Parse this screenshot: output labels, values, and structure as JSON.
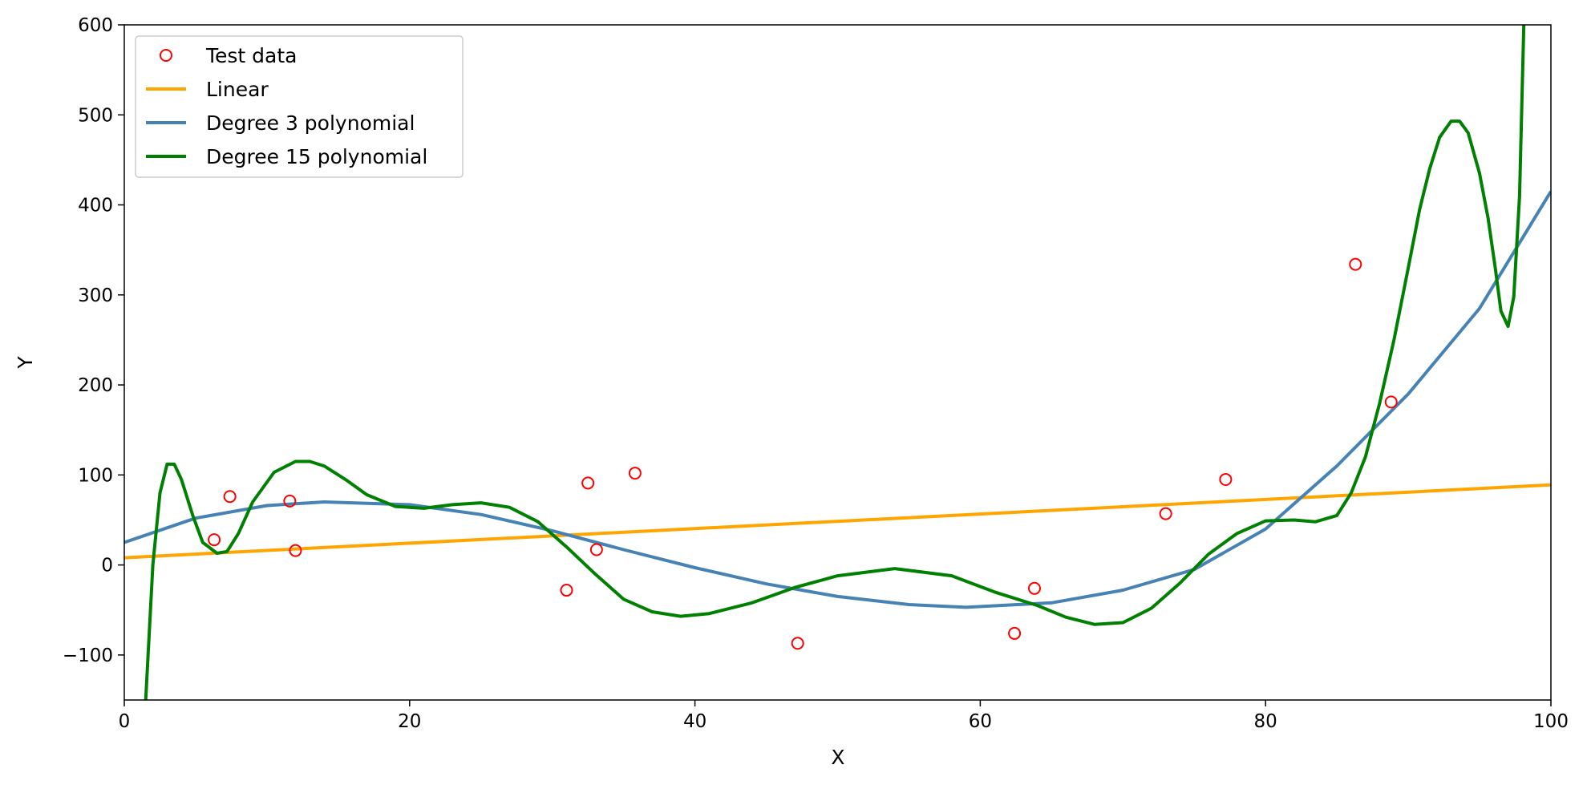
{
  "chart_data": {
    "type": "line",
    "title": "",
    "xlabel": "X",
    "ylabel": "Y",
    "xlim": [
      0,
      100
    ],
    "ylim": [
      -150,
      600
    ],
    "xticks": [
      0,
      20,
      40,
      60,
      80,
      100
    ],
    "yticks": [
      -100,
      0,
      100,
      200,
      300,
      400,
      500,
      600
    ],
    "xtick_labels": [
      "0",
      "20",
      "40",
      "60",
      "80",
      "100"
    ],
    "ytick_labels": [
      "−100",
      "0",
      "100",
      "200",
      "300",
      "400",
      "500",
      "600"
    ],
    "grid": false,
    "legend_position": "top-left",
    "legend": [
      {
        "label": "Test data",
        "kind": "marker",
        "color": "#ff0000"
      },
      {
        "label": "Linear",
        "kind": "line",
        "color": "#ffa500"
      },
      {
        "label": "Degree 3 polynomial",
        "kind": "line",
        "color": "#4682b4"
      },
      {
        "label": "Degree 15 polynomial",
        "kind": "line",
        "color": "#008000"
      }
    ],
    "scatter": {
      "name": "Test data",
      "color": "#ff0000",
      "points": [
        [
          6.3,
          28
        ],
        [
          7.4,
          76
        ],
        [
          11.6,
          71
        ],
        [
          12.0,
          16
        ],
        [
          31.0,
          -28
        ],
        [
          32.5,
          91
        ],
        [
          33.1,
          17
        ],
        [
          35.8,
          102
        ],
        [
          47.2,
          -87
        ],
        [
          62.4,
          -76
        ],
        [
          63.8,
          -26
        ],
        [
          73.0,
          57
        ],
        [
          77.2,
          95
        ],
        [
          86.3,
          334
        ],
        [
          88.8,
          181
        ]
      ]
    },
    "series": [
      {
        "name": "Linear",
        "color": "#ffa500",
        "x": [
          0,
          100
        ],
        "y": [
          8,
          89
        ]
      },
      {
        "name": "Degree 3 polynomial",
        "color": "#4682b4",
        "x": [
          0,
          5,
          10,
          14,
          20,
          25,
          30,
          35,
          40,
          45,
          50,
          55,
          59,
          65,
          70,
          75,
          80,
          85,
          90,
          95,
          100
        ],
        "y": [
          25,
          52,
          66,
          70,
          67,
          56,
          38,
          17,
          -3,
          -21,
          -35,
          -44,
          -47,
          -42,
          -28,
          -5,
          40,
          110,
          190,
          285,
          415
        ]
      },
      {
        "name": "Degree 15 polynomial",
        "color": "#008000",
        "x": [
          1.5,
          2.0,
          2.5,
          3.0,
          3.5,
          4.0,
          4.8,
          5.5,
          6.5,
          7.2,
          8.0,
          9.0,
          10.5,
          12.0,
          13.0,
          14.0,
          15.5,
          17.0,
          19.0,
          21.0,
          23.0,
          25.0,
          27.0,
          29.0,
          31.0,
          33.0,
          35.0,
          37.0,
          39.0,
          41.0,
          44.0,
          47.0,
          50.0,
          54.0,
          58.0,
          61.0,
          64.0,
          66.0,
          68.0,
          70.0,
          72.0,
          74.0,
          76.0,
          78.0,
          80.0,
          82.0,
          83.5,
          85.0,
          86.0,
          87.0,
          88.0,
          89.0,
          90.0,
          90.8,
          91.5,
          92.2,
          93.0,
          93.6,
          94.2,
          95.0,
          95.6,
          96.1,
          96.5,
          97.0,
          97.4,
          97.8,
          98.1
        ],
        "y": [
          -150,
          0,
          80,
          112,
          112,
          95,
          55,
          25,
          13,
          15,
          35,
          70,
          103,
          115,
          115,
          110,
          95,
          78,
          65,
          63,
          67,
          69,
          64,
          48,
          20,
          -10,
          -38,
          -52,
          -57,
          -54,
          -42,
          -25,
          -12,
          -4,
          -12,
          -30,
          -45,
          -58,
          -66,
          -64,
          -48,
          -20,
          12,
          35,
          49,
          50,
          48,
          55,
          80,
          120,
          180,
          250,
          330,
          395,
          440,
          475,
          493,
          493,
          480,
          435,
          385,
          330,
          282,
          265,
          298,
          410,
          600
        ]
      }
    ]
  }
}
